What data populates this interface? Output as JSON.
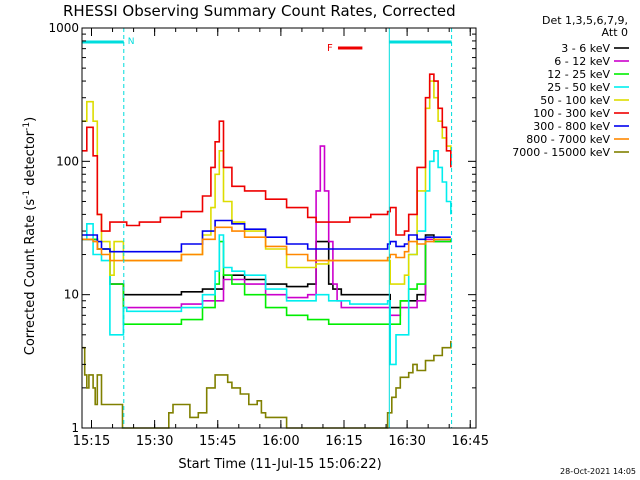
{
  "chart_data": {
    "type": "line",
    "title": "RHESSI Observing Summary Count Rates, Corrected",
    "xlabel": "Start Time (11-Jul-15 15:06:22)",
    "ylabel_main": "Corrected Count Rate (s",
    "ylabel_sup1": "-1",
    "ylabel_mid": " detector",
    "ylabel_sup2": "-1",
    "ylabel_end": ")",
    "yscale": "log",
    "ylim": [
      1,
      1000
    ],
    "y_ticks": [
      {
        "v": 1,
        "label": "1"
      },
      {
        "v": 10,
        "label": "10"
      },
      {
        "v": 100,
        "label": "100"
      },
      {
        "v": 1000,
        "label": "1000"
      }
    ],
    "xlim_min": [
      6.37,
      100.0
    ],
    "x_ticks": [
      {
        "m": 8.63,
        "label": "15:15"
      },
      {
        "m": 23.63,
        "label": "15:30"
      },
      {
        "m": 38.63,
        "label": "15:45"
      },
      {
        "m": 53.63,
        "label": "16:00"
      },
      {
        "m": 68.63,
        "label": "16:15"
      },
      {
        "m": 83.63,
        "label": "16:30"
      },
      {
        "m": 98.63,
        "label": "16:45"
      }
    ],
    "legend_header": [
      "Det 1,3,5,6,7,9,",
      "Att 0"
    ],
    "timestamp": "28-Oct-2021 14:05",
    "night_segments": [
      [
        6.37,
        16.3
      ],
      [
        79.4,
        94.2
      ]
    ],
    "night_label": "N",
    "flare_segment": [
      67.2,
      73.0
    ],
    "flare_label": "F",
    "series": [
      {
        "name": "3 - 6 keV",
        "color": "#000000",
        "x": [
          6.5,
          10,
          13,
          16.2,
          17,
          20,
          25,
          30,
          35,
          40,
          45,
          50,
          55,
          60,
          62,
          65,
          66,
          68,
          70,
          72,
          75,
          79,
          79.6,
          82,
          84,
          86,
          88,
          90,
          92,
          94
        ],
        "y": [
          26,
          22,
          12,
          10,
          10,
          10,
          10,
          10.5,
          11,
          14,
          13,
          12,
          11.5,
          12,
          25,
          12,
          11,
          10,
          10,
          10,
          10,
          10,
          8,
          9,
          9,
          10,
          28,
          26,
          26,
          26
        ]
      },
      {
        "name": "6 - 12 keV",
        "color": "#cc00cc",
        "x": [
          6.5,
          10,
          13,
          16.2,
          17,
          20,
          25,
          30,
          35,
          40,
          45,
          50,
          55,
          60,
          62,
          63,
          64,
          65,
          66,
          67,
          68,
          69,
          70,
          72,
          75,
          79,
          79.6,
          82,
          84,
          86,
          88,
          90,
          92,
          94
        ],
        "y": [
          26,
          22,
          12,
          8,
          8,
          8,
          8,
          8.5,
          9,
          13,
          12,
          10,
          9.5,
          10,
          60,
          130,
          60,
          25,
          12,
          9,
          8,
          8,
          8,
          8,
          8,
          8,
          7,
          8,
          8,
          9,
          26,
          25,
          25,
          26
        ]
      },
      {
        "name": "12 - 25 keV",
        "color": "#00ee00",
        "x": [
          6.5,
          10,
          13,
          16.2,
          17,
          20,
          25,
          30,
          35,
          38,
          39,
          40,
          42,
          45,
          50,
          55,
          60,
          62,
          65,
          70,
          75,
          79,
          79.6,
          82,
          84,
          86,
          88,
          90,
          92,
          94
        ],
        "y": [
          26,
          22,
          12,
          6,
          6,
          6,
          6,
          6.5,
          8,
          12,
          25,
          14,
          12,
          10,
          8,
          7,
          6.5,
          6.5,
          6,
          6,
          6,
          6,
          6,
          9,
          11,
          12,
          27,
          25,
          25,
          26
        ]
      },
      {
        "name": "25 - 50 keV",
        "color": "#00eeee",
        "x": [
          6.5,
          7.5,
          9,
          10,
          11,
          13,
          16.2,
          17,
          20,
          25,
          30,
          35,
          38,
          39,
          40,
          42,
          45,
          50,
          55,
          60,
          62,
          65,
          70,
          75,
          79,
          79.6,
          81,
          84,
          86,
          88,
          89,
          90,
          91,
          92,
          93,
          94
        ],
        "y": [
          26,
          34,
          20,
          20,
          18,
          5,
          8,
          7.5,
          7.5,
          7.5,
          8,
          10,
          15,
          28,
          16,
          15,
          14,
          11,
          9,
          9,
          10,
          9,
          8.5,
          8.5,
          9,
          3,
          5,
          20,
          30,
          60,
          100,
          120,
          90,
          70,
          50,
          40
        ]
      },
      {
        "name": "50 - 100 keV",
        "color": "#dddd00",
        "x": [
          6.5,
          7.5,
          9,
          10,
          11,
          13,
          14,
          16.2,
          17,
          20,
          25,
          30,
          35,
          37,
          38,
          39,
          40,
          42,
          45,
          50,
          55,
          60,
          62,
          65,
          70,
          75,
          79,
          79.6,
          81,
          83,
          84,
          86,
          88,
          89,
          90,
          91,
          92,
          93,
          94
        ],
        "y": [
          200,
          280,
          200,
          40,
          25,
          14,
          25,
          18,
          18,
          18,
          18,
          20,
          28,
          45,
          80,
          120,
          50,
          35,
          30,
          22,
          16,
          16,
          17,
          18,
          18,
          18,
          18,
          12,
          12,
          14,
          20,
          60,
          250,
          400,
          300,
          200,
          150,
          130,
          120
        ]
      },
      {
        "name": "100 - 300 keV",
        "color": "#ee0000",
        "x": [
          6.5,
          7.5,
          9,
          10,
          11,
          13,
          16.2,
          17,
          20,
          25,
          30,
          35,
          37,
          38,
          39,
          40,
          42,
          45,
          50,
          55,
          60,
          62,
          65,
          70,
          75,
          79,
          79.6,
          81,
          83,
          84,
          86,
          88,
          89,
          90,
          91,
          92,
          93,
          94
        ],
        "y": [
          120,
          180,
          110,
          40,
          30,
          35,
          35,
          33,
          35,
          38,
          42,
          55,
          90,
          140,
          200,
          90,
          65,
          60,
          52,
          45,
          38,
          35,
          35,
          38,
          40,
          42,
          45,
          28,
          30,
          40,
          90,
          300,
          450,
          400,
          250,
          180,
          120,
          90
        ]
      },
      {
        "name": "300 - 800 keV",
        "color": "#0000ee",
        "x": [
          6.5,
          9,
          10,
          11,
          13,
          16.2,
          17,
          20,
          25,
          30,
          35,
          38,
          40,
          42,
          45,
          50,
          55,
          60,
          62,
          65,
          70,
          75,
          79,
          79.6,
          81,
          83,
          84,
          86,
          88,
          90,
          92,
          94
        ],
        "y": [
          28,
          28,
          25,
          22,
          21,
          21,
          21,
          21,
          21,
          24,
          30,
          36,
          36,
          34,
          31,
          27,
          24,
          22,
          22,
          22,
          22,
          22,
          24,
          25,
          23,
          24,
          28,
          26,
          27,
          27,
          27,
          27
        ]
      },
      {
        "name": "800 - 7000 keV",
        "color": "#ff8800",
        "x": [
          6.5,
          9,
          10,
          11,
          13,
          16.2,
          17,
          20,
          25,
          30,
          35,
          38,
          40,
          42,
          45,
          50,
          55,
          60,
          62,
          65,
          70,
          75,
          79,
          79.6,
          81,
          83,
          84,
          86,
          88,
          90,
          92,
          94
        ],
        "y": [
          26,
          25,
          22,
          20,
          18,
          18,
          18,
          18,
          18,
          20,
          26,
          32,
          32,
          30,
          27,
          23,
          20,
          18,
          18,
          18,
          18,
          18,
          19,
          20,
          19,
          21,
          25,
          24,
          25,
          26,
          26,
          26
        ]
      },
      {
        "name": "7000 - 15000 keV",
        "color": "#808000",
        "x": [
          6.5,
          7,
          7.5,
          8,
          9,
          9.5,
          10,
          11,
          13,
          16,
          20,
          25,
          27,
          28,
          30,
          32,
          34,
          36,
          38,
          40,
          41,
          42,
          44,
          46,
          48,
          49,
          50,
          52,
          55,
          58,
          60,
          63,
          66,
          70,
          75,
          78,
          79,
          80,
          81,
          82,
          84,
          85,
          86,
          88,
          90,
          92,
          94
        ],
        "y": [
          4,
          2.5,
          2,
          2.5,
          2,
          1.5,
          2.5,
          1.5,
          1.5,
          1,
          1,
          1,
          1.3,
          1.5,
          1.5,
          1.2,
          1.3,
          2,
          2.5,
          2.5,
          2.2,
          2,
          1.8,
          1.5,
          1.6,
          1.3,
          1.2,
          1.2,
          1,
          1,
          1,
          1,
          1,
          1,
          1,
          1,
          1.3,
          1.7,
          2,
          2.4,
          2.6,
          3,
          2.7,
          3.2,
          3.5,
          4,
          4.5
        ]
      }
    ]
  }
}
